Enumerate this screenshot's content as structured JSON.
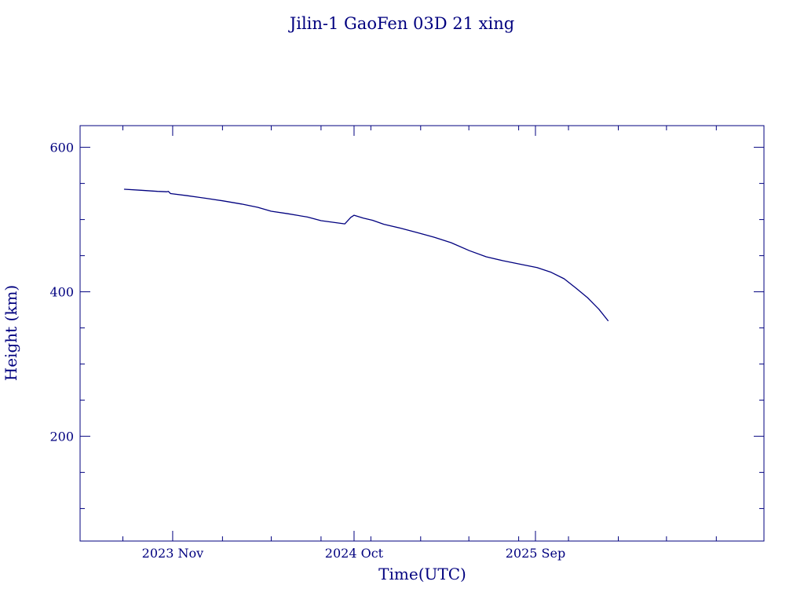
{
  "chart_data": {
    "type": "line",
    "title": "Jilin-1 GaoFen 03D 21 xing",
    "xlabel": "Time(UTC)",
    "ylabel": "Height (km)",
    "x_ticks": [
      {
        "date": "2023-11-01",
        "label": "2023 Nov"
      },
      {
        "date": "2024-10-01",
        "label": "2024 Oct"
      },
      {
        "date": "2025-09-01",
        "label": "2025 Sep"
      }
    ],
    "x_range": [
      "2023-05-14",
      "2026-10-28"
    ],
    "ylim": [
      55,
      630
    ],
    "y_major_ticks": [
      200,
      400,
      600
    ],
    "y_minor_step": 50,
    "grid": false,
    "color": "#00007f",
    "series": [
      {
        "points": [
          {
            "x": "2023-08-04",
            "y": 542
          },
          {
            "x": "2023-09-04",
            "y": 540.5
          },
          {
            "x": "2023-10-04",
            "y": 539
          },
          {
            "x": "2023-10-21",
            "y": 538.5
          },
          {
            "x": "2023-10-24",
            "y": 539
          },
          {
            "x": "2023-10-28",
            "y": 536
          },
          {
            "x": "2023-11-28",
            "y": 533
          },
          {
            "x": "2024-01-01",
            "y": 529.5
          },
          {
            "x": "2024-02-01",
            "y": 526
          },
          {
            "x": "2024-03-07",
            "y": 521.5
          },
          {
            "x": "2024-04-06",
            "y": 517
          },
          {
            "x": "2024-05-01",
            "y": 511.5
          },
          {
            "x": "2024-06-01",
            "y": 508
          },
          {
            "x": "2024-07-07",
            "y": 503.5
          },
          {
            "x": "2024-08-01",
            "y": 498.5
          },
          {
            "x": "2024-09-14",
            "y": 494
          },
          {
            "x": "2024-09-25",
            "y": 503
          },
          {
            "x": "2024-10-01",
            "y": 506
          },
          {
            "x": "2024-10-18",
            "y": 502
          },
          {
            "x": "2024-11-04",
            "y": 499
          },
          {
            "x": "2024-11-25",
            "y": 493.5
          },
          {
            "x": "2024-12-26",
            "y": 488
          },
          {
            "x": "2025-01-26",
            "y": 482
          },
          {
            "x": "2025-02-26",
            "y": 475.5
          },
          {
            "x": "2025-03-29",
            "y": 468
          },
          {
            "x": "2025-05-02",
            "y": 457
          },
          {
            "x": "2025-06-02",
            "y": 448.5
          },
          {
            "x": "2025-07-03",
            "y": 443
          },
          {
            "x": "2025-08-05",
            "y": 438
          },
          {
            "x": "2025-09-04",
            "y": 433.5
          },
          {
            "x": "2025-09-30",
            "y": 427
          },
          {
            "x": "2025-10-24",
            "y": 418
          },
          {
            "x": "2025-11-15",
            "y": 405
          },
          {
            "x": "2025-12-06",
            "y": 392
          },
          {
            "x": "2025-12-27",
            "y": 376
          },
          {
            "x": "2026-01-13",
            "y": 360
          }
        ]
      }
    ]
  }
}
